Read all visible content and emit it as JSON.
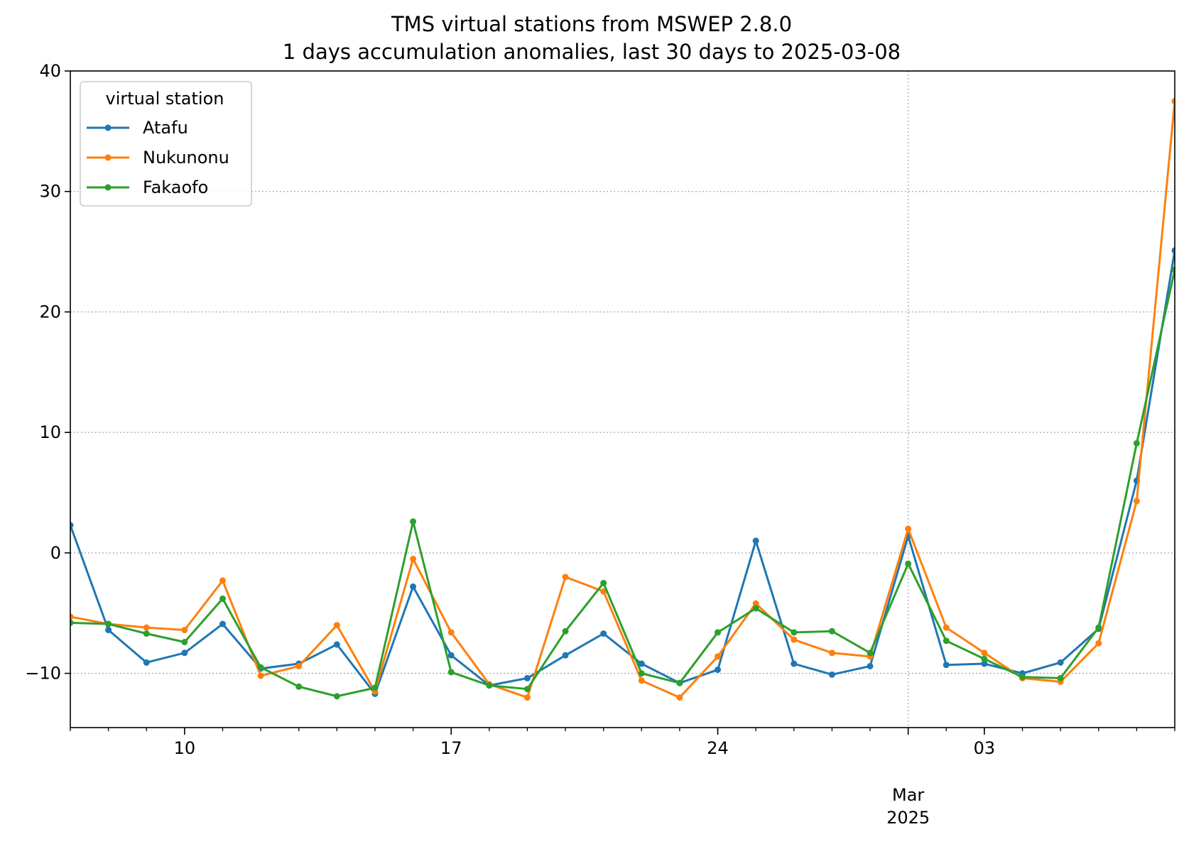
{
  "chart_data": {
    "type": "line",
    "title": "TMS virtual stations from MSWEP 2.8.0",
    "subtitle": "1 days accumulation anomalies, last 30 days to 2025-03-08",
    "xlabel": "",
    "ylabel": "",
    "ylim": [
      -14.5,
      40
    ],
    "xlim": [
      "2025-02-07",
      "2025-03-08"
    ],
    "yticks": [
      -10,
      0,
      10,
      20,
      30,
      40
    ],
    "ytick_labels": [
      "−10",
      "0",
      "10",
      "20",
      "30",
      "40"
    ],
    "xticks_major": [
      {
        "date": "2025-02-10",
        "label": "10"
      },
      {
        "date": "2025-02-17",
        "label": "17"
      },
      {
        "date": "2025-02-24",
        "label": "24"
      },
      {
        "date": "2025-03-03",
        "label": "03"
      }
    ],
    "month_marker": {
      "date": "2025-03-01",
      "label": "Mar",
      "year": "2025"
    },
    "grid": true,
    "legend": {
      "title": "virtual station",
      "placement": "top-left"
    },
    "x": [
      "2025-02-07",
      "2025-02-08",
      "2025-02-09",
      "2025-02-10",
      "2025-02-11",
      "2025-02-12",
      "2025-02-13",
      "2025-02-14",
      "2025-02-15",
      "2025-02-16",
      "2025-02-17",
      "2025-02-18",
      "2025-02-19",
      "2025-02-20",
      "2025-02-21",
      "2025-02-22",
      "2025-02-23",
      "2025-02-24",
      "2025-02-25",
      "2025-02-26",
      "2025-02-27",
      "2025-02-28",
      "2025-03-01",
      "2025-03-02",
      "2025-03-03",
      "2025-03-04",
      "2025-03-05",
      "2025-03-06",
      "2025-03-07",
      "2025-03-08"
    ],
    "series": [
      {
        "name": "Atafu",
        "color": "#1f77b4",
        "values": [
          2.3,
          -6.4,
          -9.1,
          -8.3,
          -5.9,
          -9.6,
          -9.2,
          -7.6,
          -11.7,
          -2.8,
          -8.5,
          -11.0,
          -10.4,
          -8.5,
          -6.7,
          -9.2,
          -10.8,
          -9.7,
          1.0,
          -9.2,
          -10.1,
          -9.4,
          1.4,
          -9.3,
          -9.2,
          -10.0,
          -9.1,
          -6.3,
          6.0,
          25.1
        ]
      },
      {
        "name": "Nukunonu",
        "color": "#ff7f0e",
        "values": [
          -5.3,
          -5.9,
          -6.2,
          -6.4,
          -2.3,
          -10.2,
          -9.4,
          -6.0,
          -11.5,
          -0.5,
          -6.6,
          -10.9,
          -12.0,
          -2.0,
          -3.2,
          -10.6,
          -12.0,
          -8.6,
          -4.2,
          -7.2,
          -8.3,
          -8.6,
          2.0,
          -6.2,
          -8.3,
          -10.4,
          -10.7,
          -7.5,
          4.3,
          37.5
        ]
      },
      {
        "name": "Fakaofo",
        "color": "#2ca02c",
        "values": [
          -5.8,
          -5.9,
          -6.7,
          -7.4,
          -3.8,
          -9.5,
          -11.1,
          -11.9,
          -11.2,
          2.6,
          -9.9,
          -11.0,
          -11.3,
          -6.5,
          -2.5,
          -10.0,
          -10.8,
          -6.6,
          -4.6,
          -6.6,
          -6.5,
          -8.3,
          -0.9,
          -7.3,
          -8.8,
          -10.3,
          -10.4,
          -6.2,
          9.1,
          23.5
        ]
      }
    ]
  }
}
